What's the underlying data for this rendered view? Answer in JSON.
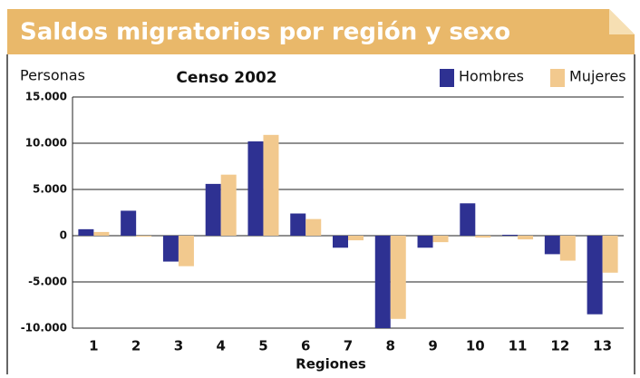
{
  "chart_data": {
    "type": "bar",
    "title": "Saldos migratorios por región y sexo",
    "subtitle": "Censo 2002",
    "y_label": "Personas",
    "x_label": "Regiones",
    "categories": [
      "1",
      "2",
      "3",
      "4",
      "5",
      "6",
      "7",
      "8",
      "9",
      "10",
      "11",
      "12",
      "13"
    ],
    "series": [
      {
        "name": "Hombres",
        "color": "#2e3192",
        "values": [
          700,
          2700,
          -2800,
          5600,
          10200,
          2400,
          -1300,
          -10000,
          -1300,
          3500,
          100,
          -2000,
          -8500
        ]
      },
      {
        "name": "Mujeres",
        "color": "#f2c98e",
        "values": [
          400,
          -100,
          -3300,
          6600,
          10900,
          1800,
          -500,
          -9000,
          -700,
          -200,
          -400,
          -2700,
          -4000
        ]
      }
    ],
    "ylim": [
      -10000,
      15000
    ],
    "yticks": [
      {
        "value": 15000,
        "label": "15.000"
      },
      {
        "value": 10000,
        "label": "10.000"
      },
      {
        "value": 5000,
        "label": "5.000"
      },
      0,
      {
        "value": -5000,
        "label": "-5.000"
      },
      {
        "value": -10000,
        "label": "-10.000"
      }
    ],
    "grid": true,
    "legend": "top-right"
  }
}
